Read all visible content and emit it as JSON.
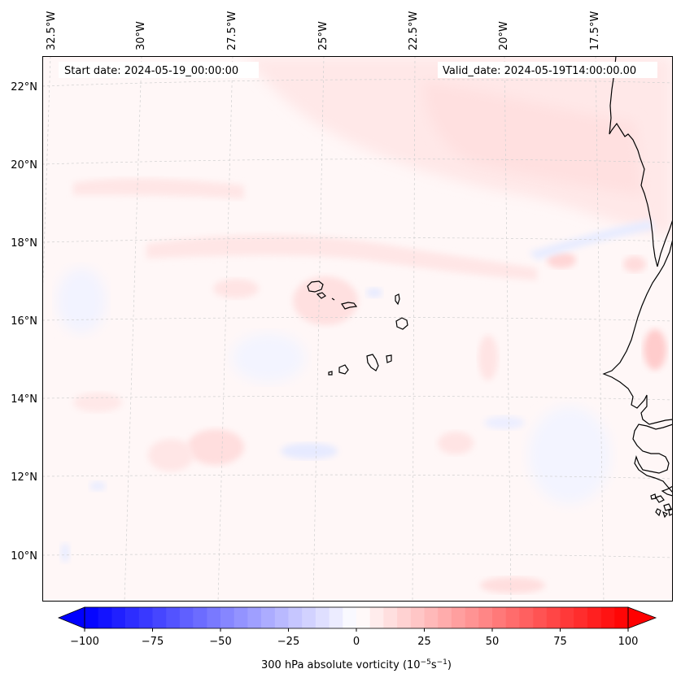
{
  "header": {
    "start_date": "Start date: 2024-05-19_00:00:00",
    "valid_date": "Valid_date: 2024-05-19T14:00:00.00"
  },
  "longitude_labels": [
    "32.5°W",
    "30°W",
    "27.5°W",
    "25°W",
    "22.5°W",
    "20°W",
    "17.5°W"
  ],
  "latitude_labels": [
    "22°N",
    "20°N",
    "18°N",
    "16°N",
    "14°N",
    "12°N",
    "10°N"
  ],
  "colorbar": {
    "label": "300 hPa absolute vorticity (10",
    "label_exp1": "−5",
    "label_mid": "s",
    "label_exp2": "−1",
    "label_end": ")",
    "ticks": [
      "−100",
      "−75",
      "−50",
      "−25",
      "0",
      "25",
      "50",
      "75",
      "100"
    ],
    "min": -100,
    "max": 100,
    "low_color": "#0000ff",
    "mid_color": "#ffffff",
    "high_color": "#ff0000"
  },
  "map_colors": {
    "background": "#fff7f7",
    "positive_patch": "#ffe4e4",
    "strong_positive": "#ffcccc",
    "negative_patch": "#eef0ff",
    "coastline": "#000000",
    "gridline": "#cccccc"
  }
}
